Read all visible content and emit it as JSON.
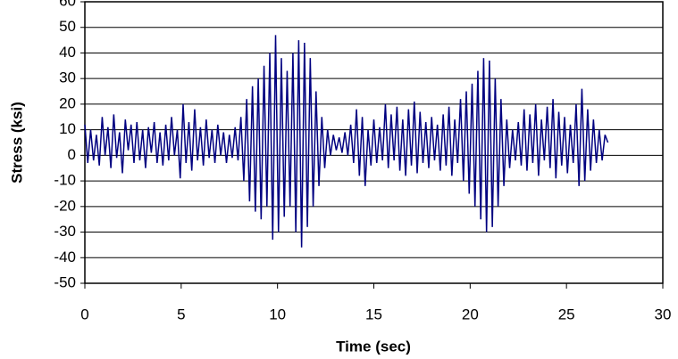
{
  "chart_data": {
    "type": "line",
    "xlabel": "Time (sec)",
    "ylabel": "Stress (ksi)",
    "xlim": [
      0,
      30
    ],
    "ylim": [
      -50,
      60
    ],
    "xticks": [
      0,
      5,
      10,
      15,
      20,
      25,
      30
    ],
    "yticks": [
      -50,
      -40,
      -30,
      -20,
      -10,
      0,
      10,
      20,
      30,
      40,
      50,
      60
    ],
    "grid": true,
    "x": [
      0,
      0.15,
      0.3,
      0.45,
      0.6,
      0.75,
      0.9,
      1.05,
      1.2,
      1.35,
      1.5,
      1.65,
      1.8,
      1.95,
      2.1,
      2.25,
      2.4,
      2.55,
      2.7,
      2.85,
      3,
      3.15,
      3.3,
      3.45,
      3.6,
      3.75,
      3.9,
      4.05,
      4.2,
      4.35,
      4.5,
      4.65,
      4.8,
      4.95,
      5.1,
      5.25,
      5.4,
      5.55,
      5.7,
      5.85,
      6,
      6.15,
      6.3,
      6.45,
      6.6,
      6.75,
      6.9,
      7.05,
      7.2,
      7.35,
      7.5,
      7.65,
      7.8,
      7.95,
      8.1,
      8.25,
      8.4,
      8.55,
      8.7,
      8.85,
      9,
      9.15,
      9.3,
      9.45,
      9.6,
      9.75,
      9.9,
      10.05,
      10.2,
      10.35,
      10.5,
      10.65,
      10.8,
      10.95,
      11.1,
      11.25,
      11.4,
      11.55,
      11.7,
      11.85,
      12,
      12.15,
      12.3,
      12.45,
      12.6,
      12.75,
      12.9,
      13.05,
      13.2,
      13.35,
      13.5,
      13.65,
      13.8,
      13.95,
      14.1,
      14.25,
      14.4,
      14.55,
      14.7,
      14.85,
      15,
      15.15,
      15.3,
      15.45,
      15.6,
      15.75,
      15.9,
      16.05,
      16.2,
      16.35,
      16.5,
      16.65,
      16.8,
      16.95,
      17.1,
      17.25,
      17.4,
      17.55,
      17.7,
      17.85,
      18,
      18.15,
      18.3,
      18.45,
      18.6,
      18.75,
      18.9,
      19.05,
      19.2,
      19.35,
      19.5,
      19.65,
      19.8,
      19.95,
      20.1,
      20.25,
      20.4,
      20.55,
      20.7,
      20.85,
      21,
      21.15,
      21.3,
      21.45,
      21.6,
      21.75,
      21.9,
      22.05,
      22.2,
      22.35,
      22.5,
      22.65,
      22.8,
      22.95,
      23.1,
      23.25,
      23.4,
      23.55,
      23.7,
      23.85,
      24,
      24.15,
      24.3,
      24.45,
      24.6,
      24.75,
      24.9,
      25.05,
      25.2,
      25.35,
      25.5,
      25.65,
      25.8,
      25.95,
      26.1,
      26.25,
      26.4,
      26.55,
      26.7,
      26.85,
      27,
      27.15
    ],
    "series": [
      {
        "color": "#000080",
        "values": [
          12,
          -3,
          10,
          -2,
          8,
          -4,
          15,
          0,
          11,
          -5,
          16,
          -1,
          9,
          -7,
          14,
          2,
          12,
          -3,
          13,
          -2,
          10,
          -5,
          11,
          1,
          13,
          -3,
          9,
          -4,
          12,
          -2,
          15,
          0,
          10,
          -9,
          20,
          -3,
          13,
          -6,
          18,
          -2,
          11,
          -4,
          14,
          -1,
          10,
          -3,
          12,
          0,
          9,
          -3,
          8,
          -1,
          11,
          -2,
          15,
          -10,
          22,
          -18,
          27,
          -22,
          30,
          -25,
          35,
          -20,
          40,
          -33,
          47,
          -30,
          38,
          -24,
          33,
          -20,
          40,
          -30,
          45,
          -36,
          44,
          -28,
          38,
          -20,
          25,
          -12,
          15,
          -5,
          10,
          0,
          8,
          2,
          7,
          1,
          9,
          0,
          12,
          -3,
          18,
          -8,
          15,
          -12,
          10,
          -4,
          14,
          -3,
          11,
          -2,
          20,
          -5,
          16,
          -2,
          19,
          -6,
          14,
          -8,
          18,
          -4,
          21,
          -7,
          17,
          -3,
          13,
          -5,
          15,
          -2,
          12,
          -6,
          16,
          -4,
          19,
          -8,
          14,
          -3,
          22,
          -10,
          25,
          -15,
          28,
          -20,
          33,
          -25,
          38,
          -30,
          37,
          -28,
          30,
          -20,
          22,
          -12,
          14,
          -5,
          10,
          -2,
          13,
          -4,
          18,
          -6,
          16,
          -3,
          20,
          -8,
          14,
          -2,
          19,
          -5,
          22,
          -9,
          17,
          -4,
          15,
          -7,
          12,
          -3,
          20,
          -12,
          26,
          -10,
          18,
          -6,
          14,
          -3,
          10,
          -2,
          8,
          5
        ]
      }
    ]
  }
}
